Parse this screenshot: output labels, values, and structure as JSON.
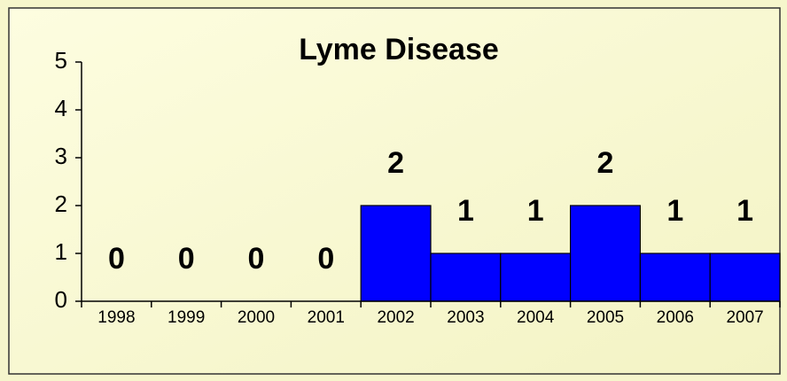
{
  "chart_data": {
    "type": "bar",
    "title": "Lyme Disease",
    "categories": [
      "1998",
      "1999",
      "2000",
      "2001",
      "2002",
      "2003",
      "2004",
      "2005",
      "2006",
      "2007"
    ],
    "values": [
      0,
      0,
      0,
      0,
      2,
      1,
      1,
      2,
      1,
      1
    ],
    "color": "#0000ff",
    "ylim": [
      0,
      5
    ],
    "yticks": [
      0,
      1,
      2,
      3,
      4,
      5
    ],
    "grid": false
  }
}
